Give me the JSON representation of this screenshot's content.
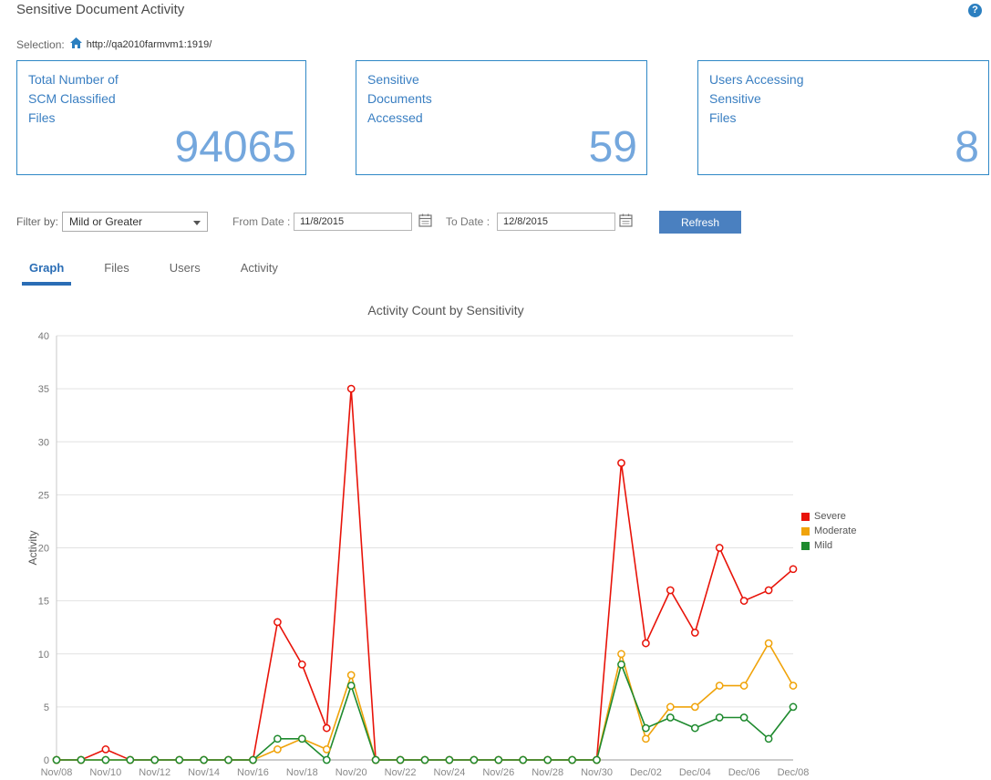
{
  "header": {
    "title": "Sensitive Document Activity",
    "help": "?"
  },
  "selection": {
    "label": "Selection:",
    "url": "http://qa2010farmvm1:1919/"
  },
  "cards": [
    {
      "lines": [
        "Total Number of",
        "SCM Classified",
        "Files"
      ],
      "value": "94065"
    },
    {
      "lines": [
        "Sensitive",
        "Documents",
        "Accessed"
      ],
      "value": "59"
    },
    {
      "lines": [
        "Users Accessing",
        "Sensitive",
        "Files"
      ],
      "value": "8"
    }
  ],
  "filters": {
    "filter_by_label": "Filter by:",
    "filter_value": "Mild or Greater",
    "from_label": "From Date :",
    "from_value": "11/8/2015",
    "to_label": "To Date :",
    "to_value": "12/8/2015",
    "refresh_label": "Refresh"
  },
  "tabs": [
    {
      "label": "Graph"
    },
    {
      "label": "Files"
    },
    {
      "label": "Users"
    },
    {
      "label": "Activity"
    }
  ],
  "colors": {
    "accent_blue": "#2f88c6",
    "button_blue": "#4a80c0",
    "severe": "#e81309",
    "moderate": "#f0a30a",
    "mild": "#1e8a2e"
  },
  "chart_data": {
    "type": "line",
    "title": "Activity Count by Sensitivity",
    "ylabel": "Activity",
    "ylim": [
      0,
      40
    ],
    "ytick_step": 5,
    "grid": true,
    "legend_position": "right",
    "x_tick_labels": [
      "Nov/08",
      "Nov/10",
      "Nov/12",
      "Nov/14",
      "Nov/16",
      "Nov/18",
      "Nov/20",
      "Nov/22",
      "Nov/24",
      "Nov/26",
      "Nov/28",
      "Nov/30",
      "Dec/02",
      "Dec/04",
      "Dec/06",
      "Dec/08"
    ],
    "points_per_tick": 2,
    "series": [
      {
        "name": "Severe",
        "color": "#e81309",
        "values": [
          0,
          0,
          1,
          0,
          0,
          0,
          0,
          0,
          0,
          13,
          9,
          3,
          35,
          0,
          0,
          0,
          0,
          0,
          0,
          0,
          0,
          0,
          0,
          28,
          11,
          16,
          12,
          20,
          15,
          16,
          18
        ]
      },
      {
        "name": "Moderate",
        "color": "#f0a30a",
        "values": [
          0,
          0,
          0,
          0,
          0,
          0,
          0,
          0,
          0,
          1,
          2,
          1,
          8,
          0,
          0,
          0,
          0,
          0,
          0,
          0,
          0,
          0,
          0,
          10,
          2,
          5,
          5,
          7,
          7,
          11,
          7
        ]
      },
      {
        "name": "Mild",
        "color": "#1e8a2e",
        "values": [
          0,
          0,
          0,
          0,
          0,
          0,
          0,
          0,
          0,
          2,
          2,
          0,
          7,
          0,
          0,
          0,
          0,
          0,
          0,
          0,
          0,
          0,
          0,
          9,
          3,
          4,
          3,
          4,
          4,
          2,
          5
        ]
      }
    ]
  }
}
